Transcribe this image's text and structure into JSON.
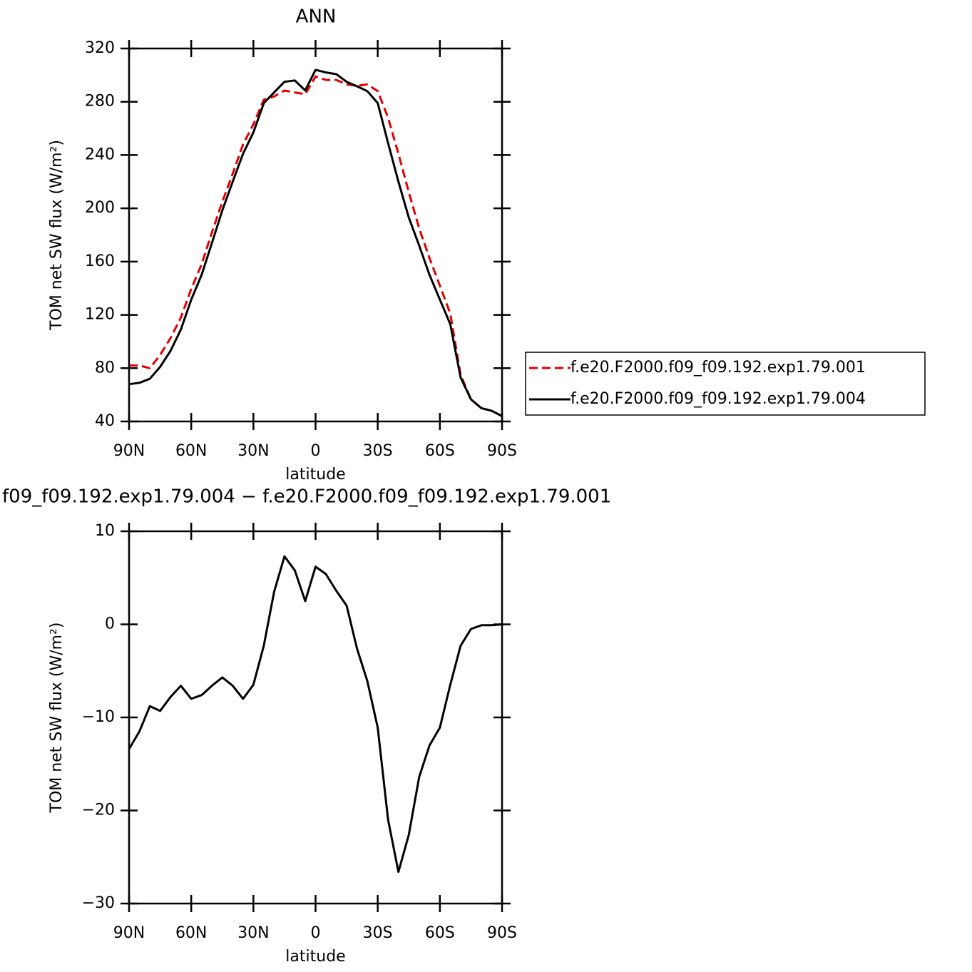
{
  "chart_data": [
    {
      "type": "line",
      "title": "ANN",
      "xlabel": "latitude",
      "ylabel": "TOM net SW flux (W/m²)",
      "x": [
        90,
        85,
        80,
        75,
        70,
        65,
        60,
        55,
        50,
        45,
        40,
        35,
        30,
        25,
        20,
        15,
        10,
        5,
        0,
        -5,
        -10,
        -15,
        -20,
        -25,
        -30,
        -35,
        -40,
        -45,
        -50,
        -55,
        -60,
        -65,
        -70,
        -75,
        -80,
        -85,
        -90
      ],
      "xlim": [
        90,
        -90
      ],
      "xticks": [
        {
          "value": 90,
          "label": "90N"
        },
        {
          "value": 60,
          "label": "60N"
        },
        {
          "value": 30,
          "label": "30N"
        },
        0,
        {
          "value": -30,
          "label": "30S"
        },
        {
          "value": -60,
          "label": "60S"
        },
        {
          "value": -90,
          "label": "90S"
        }
      ],
      "ylim": [
        40,
        320
      ],
      "yticks": [
        40,
        80,
        120,
        160,
        200,
        240,
        280,
        320
      ],
      "legend": "right",
      "series": [
        {
          "name": "f.e20.F2000.f09_f09.192.exp1.79.001",
          "color": "#e00000",
          "style": "dashed",
          "values": [
            82,
            82,
            80,
            90,
            102.6,
            118,
            139.6,
            158,
            182,
            205,
            226,
            248,
            263,
            281.5,
            284,
            288.4,
            287,
            285.7,
            299,
            296.4,
            296.4,
            293,
            292,
            293,
            288,
            268,
            241,
            212,
            185,
            162.6,
            142,
            121,
            75,
            56.6,
            50,
            48,
            44
          ]
        },
        {
          "name": "f.e20.F2000.f09_f09.192.exp1.79.004",
          "color": "#000000",
          "style": "solid",
          "values": [
            68,
            69,
            72,
            81,
            93,
            109,
            131.5,
            150,
            174,
            198.5,
            220,
            241,
            257,
            279,
            287,
            295,
            296,
            288.5,
            304,
            302,
            300.7,
            295,
            291.6,
            288,
            279,
            249,
            220,
            193,
            172,
            150,
            131.5,
            113,
            73,
            56.6,
            50,
            48,
            44
          ]
        }
      ]
    },
    {
      "type": "line",
      "title": "f09_f09.192.exp1.79.004 − f.e20.F2000.f09_f09.192.exp1.79.001",
      "xlabel": "latitude",
      "ylabel": "TOM net SW flux (W/m²)",
      "x": [
        90,
        85,
        80,
        75,
        70,
        65,
        60,
        55,
        50,
        45,
        40,
        35,
        30,
        25,
        20,
        15,
        10,
        5,
        0,
        -5,
        -10,
        -15,
        -20,
        -25,
        -30,
        -35,
        -40,
        -45,
        -50,
        -55,
        -60,
        -65,
        -70,
        -75,
        -80,
        -85,
        -90
      ],
      "xlim": [
        90,
        -90
      ],
      "xticks": [
        {
          "value": 90,
          "label": "90N"
        },
        {
          "value": 60,
          "label": "60N"
        },
        {
          "value": 30,
          "label": "30N"
        },
        0,
        {
          "value": -30,
          "label": "30S"
        },
        {
          "value": -60,
          "label": "60S"
        },
        {
          "value": -90,
          "label": "90S"
        }
      ],
      "ylim": [
        -30,
        10
      ],
      "yticks": [
        {
          "value": -30,
          "label": "−30"
        },
        {
          "value": -20,
          "label": "−20"
        },
        {
          "value": -10,
          "label": "−10"
        },
        0,
        10
      ],
      "color": "#000000",
      "values": [
        -13.4,
        -11.5,
        -8.8,
        -9.3,
        -7.8,
        -6.6,
        -8.0,
        -7.6,
        -6.6,
        -5.7,
        -6.6,
        -8.0,
        -6.5,
        -2.3,
        3.5,
        7.3,
        5.8,
        2.5,
        6.2,
        5.4,
        3.6,
        2.0,
        -2.6,
        -6.1,
        -11.1,
        -21,
        -26.6,
        -22.6,
        -16.4,
        -13,
        -11.1,
        -6.5,
        -2.3,
        -0.5,
        -0.1,
        -0.1,
        0
      ]
    }
  ]
}
